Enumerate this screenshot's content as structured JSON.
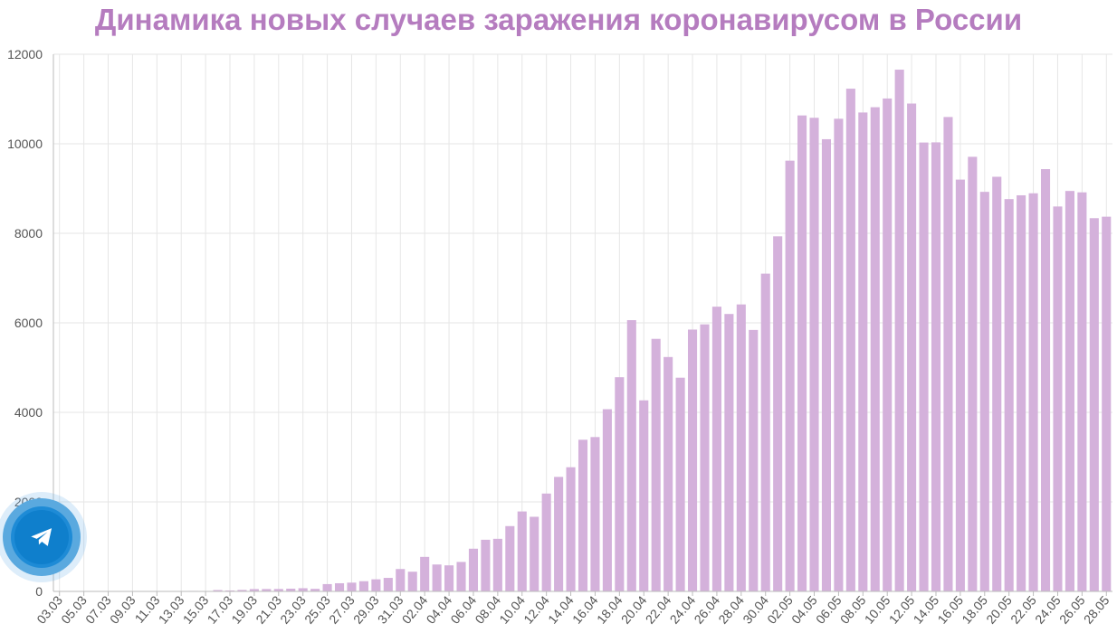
{
  "chart_data": {
    "type": "bar",
    "title": "Динамика новых случаев заражения коронавирусом в России",
    "xlabel": "",
    "ylabel": "",
    "ylim": [
      0,
      12000
    ],
    "yticks": [
      0,
      2000,
      4000,
      6000,
      8000,
      10000,
      12000
    ],
    "grid": true,
    "categories": [
      "03.03",
      "04.03",
      "05.03",
      "06.03",
      "07.03",
      "08.03",
      "09.03",
      "10.03",
      "11.03",
      "12.03",
      "13.03",
      "14.03",
      "15.03",
      "16.03",
      "17.03",
      "18.03",
      "19.03",
      "20.03",
      "21.03",
      "22.03",
      "23.03",
      "24.03",
      "25.03",
      "26.03",
      "27.03",
      "28.03",
      "29.03",
      "30.03",
      "31.03",
      "01.04",
      "02.04",
      "03.04",
      "04.04",
      "05.04",
      "06.04",
      "07.04",
      "08.04",
      "09.04",
      "10.04",
      "11.04",
      "12.04",
      "13.04",
      "14.04",
      "15.04",
      "16.04",
      "17.04",
      "18.04",
      "19.04",
      "20.04",
      "21.04",
      "22.04",
      "23.04",
      "24.04",
      "25.04",
      "26.04",
      "27.04",
      "28.04",
      "29.04",
      "30.04",
      "01.05",
      "02.05",
      "03.05",
      "04.05",
      "05.05",
      "06.05",
      "07.05",
      "08.05",
      "09.05",
      "10.05",
      "11.05",
      "12.05",
      "13.05",
      "14.05",
      "15.05",
      "16.05",
      "17.05",
      "18.05",
      "19.05",
      "20.05",
      "21.05",
      "22.05",
      "23.05",
      "24.05",
      "25.05",
      "26.05",
      "27.05",
      "28.05"
    ],
    "tick_labels": [
      "03.03",
      "05.03",
      "07.03",
      "09.03",
      "11.03",
      "13.03",
      "15.03",
      "17.03",
      "19.03",
      "21.03",
      "23.03",
      "25.03",
      "27.03",
      "29.03",
      "31.03",
      "02.04",
      "04.04",
      "06.04",
      "08.04",
      "10.04",
      "12.04",
      "14.04",
      "16.04",
      "18.04",
      "20.04",
      "22.04",
      "24.04",
      "26.04",
      "28.04",
      "30.04",
      "02.05",
      "04.05",
      "06.05",
      "08.05",
      "10.05",
      "12.05",
      "14.05",
      "16.05",
      "18.05",
      "20.05",
      "22.05",
      "24.05",
      "26.05",
      "28.05"
    ],
    "series": [
      {
        "values": [
          1,
          0,
          0,
          0,
          0,
          0,
          0,
          7,
          3,
          6,
          6,
          11,
          4,
          30,
          21,
          33,
          52,
          53,
          54,
          61,
          71,
          57,
          163,
          182,
          196,
          228,
          270,
          302,
          500,
          440,
          771,
          601,
          582,
          658,
          954,
          1154,
          1175,
          1459,
          1786,
          1667,
          2186,
          2558,
          2774,
          3388,
          3448,
          4070,
          4785,
          6060,
          4268,
          5642,
          5236,
          4774,
          5849,
          5966,
          6361,
          6198,
          6411,
          5841,
          7099,
          7933,
          9623,
          10633,
          10581,
          10102,
          10559,
          11231,
          10699,
          10817,
          11012,
          11656,
          10899,
          10028,
          10032,
          10598,
          9200,
          9709,
          8926,
          9263,
          8764,
          8849,
          8894,
          9434,
          8599,
          8946,
          8915,
          8338,
          8371
        ]
      }
    ],
    "colors": {
      "bar": "#d4b1db",
      "title": "#b57cbf",
      "grid": "#e6e6e6",
      "tick_label": "#555555"
    }
  },
  "widget": {
    "icon": "telegram-icon",
    "colors": {
      "outer": "#5aa9df",
      "inner": "#0f7fcc"
    }
  }
}
